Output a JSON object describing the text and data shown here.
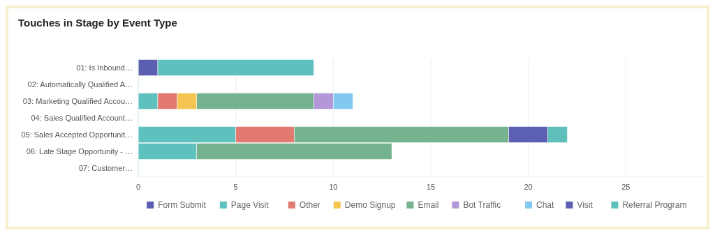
{
  "chart_data": {
    "type": "bar",
    "orientation": "horizontal",
    "stacked": true,
    "title": "Touches in Stage by Event Type",
    "categories": [
      "01: Is Inbound…",
      "02: Automatically Qualified A…",
      "03: Marketing Qualified Accou…",
      "04: Sales Qualified Account…",
      "05: Sales Accepted Opportunit…",
      "06: Late Stage Opportunity - …",
      "07: Customer…"
    ],
    "series": [
      {
        "name": "Form Submit",
        "color": "#5c5fb0",
        "values": [
          1,
          0,
          0,
          0,
          0,
          0,
          0
        ]
      },
      {
        "name": "Page Visit",
        "color": "#5fc1bd",
        "values": [
          8,
          0,
          1,
          0,
          5,
          3,
          0
        ]
      },
      {
        "name": "Other",
        "color": "#e27a72",
        "values": [
          0,
          0,
          1,
          0,
          3,
          0,
          0
        ]
      },
      {
        "name": "Demo Signup",
        "color": "#f5c553",
        "values": [
          0,
          0,
          1,
          0,
          0,
          0,
          0
        ]
      },
      {
        "name": "Email",
        "color": "#75b28f",
        "values": [
          0,
          0,
          6,
          0,
          11,
          10,
          0
        ]
      },
      {
        "name": "Bot Traffic",
        "color": "#b497d9",
        "values": [
          0,
          0,
          1,
          0,
          0,
          0,
          0
        ]
      },
      {
        "name": "Chat",
        "color": "#82c8ef",
        "values": [
          0,
          0,
          1,
          0,
          0,
          0,
          0
        ]
      },
      {
        "name": "Visit",
        "color": "#5c5fb2",
        "values": [
          0,
          0,
          0,
          0,
          2,
          0,
          0
        ]
      },
      {
        "name": "Referral Program",
        "color": "#5fc0bb",
        "values": [
          0,
          0,
          0,
          0,
          1,
          0,
          0
        ]
      }
    ],
    "xlim": [
      0,
      29
    ],
    "xticks": [
      0,
      5,
      10,
      15,
      20,
      25
    ],
    "grid": "x",
    "legend": "bottom"
  }
}
